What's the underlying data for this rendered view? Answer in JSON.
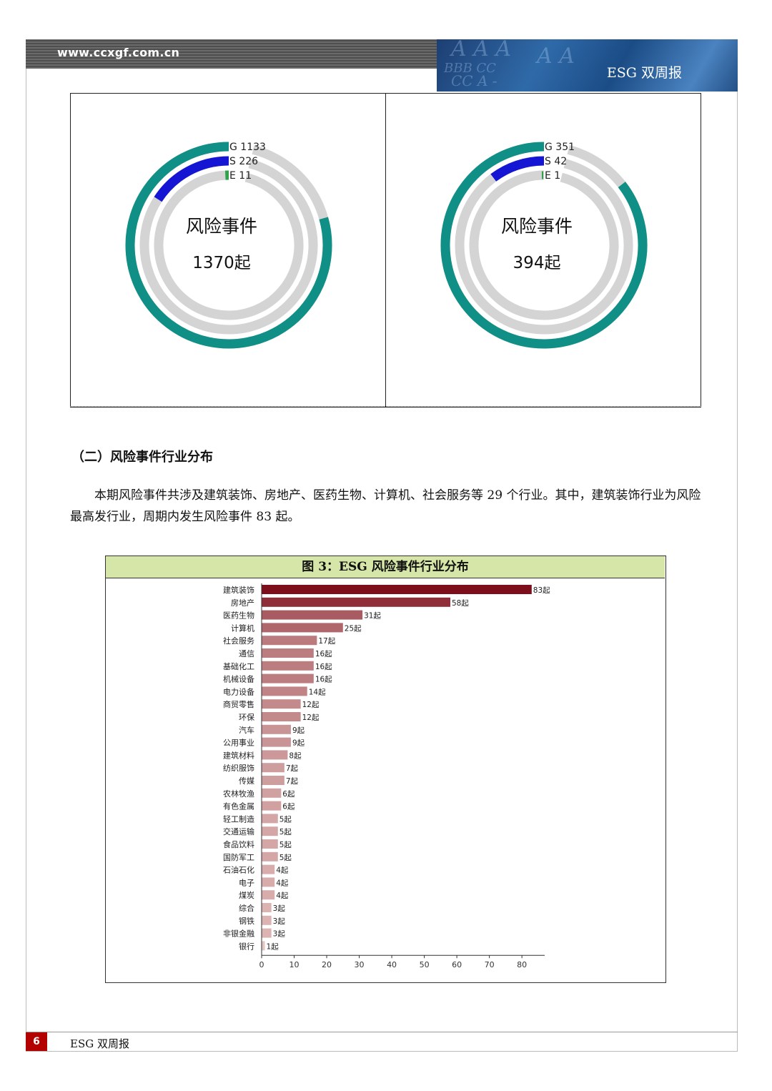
{
  "header": {
    "url": "www.ccxgf.com.cn",
    "title": "ESG 双周报"
  },
  "donut_charts": [
    {
      "center_title": "风险事件",
      "center_value": "1370起",
      "legend": [
        {
          "label": "G",
          "value": "1133"
        },
        {
          "label": "S",
          "value": "226"
        },
        {
          "label": "E",
          "value": "11"
        }
      ],
      "rings": [
        {
          "name": "G",
          "value": 1133,
          "total": 1370,
          "color": "#0f8f86"
        },
        {
          "name": "S",
          "value": 226,
          "total": 1370,
          "color": "#1515d4"
        },
        {
          "name": "E",
          "value": 11,
          "total": 1370,
          "color": "#2fa24a"
        }
      ]
    },
    {
      "center_title": "风险事件",
      "center_value": "394起",
      "legend": [
        {
          "label": "G",
          "value": "351"
        },
        {
          "label": "S",
          "value": "42"
        },
        {
          "label": "E",
          "value": "1"
        }
      ],
      "rings": [
        {
          "name": "G",
          "value": 351,
          "total": 394,
          "color": "#0f8f86"
        },
        {
          "name": "S",
          "value": 42,
          "total": 394,
          "color": "#1515d4"
        },
        {
          "name": "E",
          "value": 1,
          "total": 394,
          "color": "#2fa24a"
        }
      ]
    }
  ],
  "section": {
    "title": "（二）风险事件行业分布",
    "paragraph": "本期风险事件共涉及建筑装饰、房地产、医药生物、计算机、社会服务等 29 个行业。其中，建筑装饰行业为风险最高发行业，周期内发生风险事件 83 起。"
  },
  "chart_data": {
    "type": "bar",
    "orientation": "horizontal",
    "title": "图 3：ESG 风险事件行业分布",
    "unit_suffix": "起",
    "categories": [
      "建筑装饰",
      "房地产",
      "医药生物",
      "计算机",
      "社会服务",
      "通信",
      "基础化工",
      "机械设备",
      "电力设备",
      "商贸零售",
      "环保",
      "汽车",
      "公用事业",
      "建筑材料",
      "纺织服饰",
      "传媒",
      "农林牧渔",
      "有色金属",
      "轻工制造",
      "交通运输",
      "食品饮料",
      "国防军工",
      "石油石化",
      "电子",
      "煤炭",
      "综合",
      "钢铁",
      "非银金融",
      "银行"
    ],
    "values": [
      83,
      58,
      31,
      25,
      17,
      16,
      16,
      16,
      14,
      12,
      12,
      9,
      9,
      8,
      7,
      7,
      6,
      6,
      5,
      5,
      5,
      5,
      4,
      4,
      4,
      3,
      3,
      3,
      1
    ],
    "xlim": [
      0,
      87
    ],
    "xticks": [
      0,
      10,
      20,
      30,
      40,
      50,
      60,
      70,
      80
    ],
    "color_scale": [
      "#f6e2dc",
      "#7d0f1c"
    ]
  },
  "footer": {
    "page": "6",
    "title": "ESG 双周报"
  }
}
